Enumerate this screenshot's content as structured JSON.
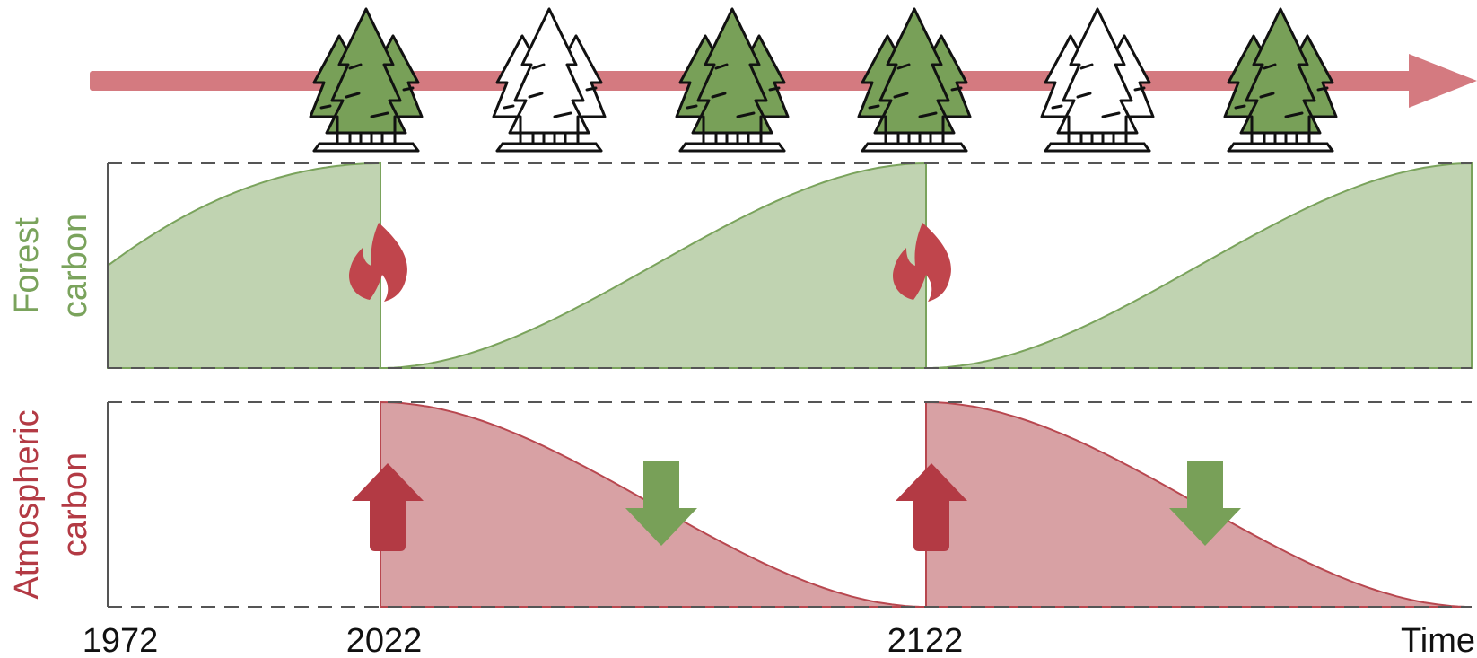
{
  "chart_data": {
    "type": "area",
    "panels": [
      {
        "ylabel": [
          "Forest",
          "carbon"
        ],
        "series": [
          {
            "segment": "pre-fire",
            "x": [
              1972,
              2022
            ],
            "shape": "concave rise",
            "y": [
              0.5,
              1.0
            ]
          },
          {
            "segment": "regrowth-1",
            "x": [
              2022,
              2122
            ],
            "shape": "sigmoid rise",
            "y": [
              0.0,
              1.0
            ]
          },
          {
            "segment": "regrowth-2",
            "x": [
              2122,
              2222
            ],
            "shape": "sigmoid rise",
            "y": [
              0.0,
              1.0
            ]
          }
        ],
        "events": [
          {
            "type": "fire",
            "x": 2022
          },
          {
            "type": "fire",
            "x": 2122
          }
        ]
      },
      {
        "ylabel": [
          "Atmospheric",
          "carbon"
        ],
        "series": [
          {
            "segment": "pulse-1",
            "x": [
              2022,
              2122
            ],
            "shape": "s-curve decline",
            "y": [
              1.0,
              0.0
            ]
          },
          {
            "segment": "pulse-2",
            "x": [
              2122,
              2222
            ],
            "shape": "s-curve decline",
            "y": [
              1.0,
              0.0
            ]
          }
        ],
        "events": [
          {
            "type": "increase-arrow",
            "x": 2022
          },
          {
            "type": "decrease-arrow",
            "x": 2073
          },
          {
            "type": "increase-arrow",
            "x": 2122
          },
          {
            "type": "decrease-arrow",
            "x": 2173
          }
        ]
      }
    ],
    "x_ticks": [
      {
        "name": "tick-1972",
        "label": "1972"
      },
      {
        "name": "tick-2022",
        "label": "2022"
      },
      {
        "name": "tick-2122",
        "label": "2122"
      }
    ],
    "xlabel": "Time",
    "tree_states": [
      "green",
      "white",
      "green",
      "green",
      "white",
      "green"
    ]
  },
  "colors": {
    "forest_fill": "#c0d3b1",
    "forest_line": "#7aa35c",
    "forest_label": "#7aa35c",
    "atmo_fill": "#d8a1a4",
    "atmo_line": "#b8474f",
    "atmo_label": "#b33a44",
    "timeline_arrow": "#d47a80",
    "tree_green": "#78a058",
    "up_arrow": "#b33a44",
    "down_arrow": "#78a058",
    "fire": "#c0454c"
  },
  "icons": {
    "tree": "tree-cluster-icon",
    "fire": "fire-icon",
    "up": "up-arrow-icon",
    "down": "down-arrow-icon"
  }
}
